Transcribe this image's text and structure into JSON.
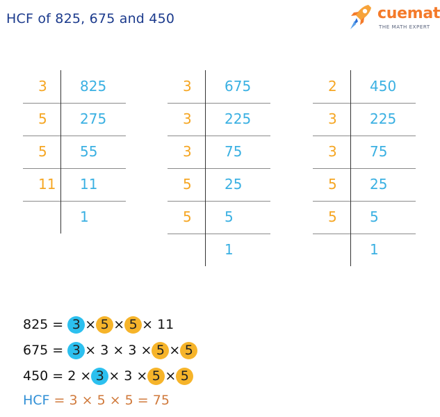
{
  "title": "HCF of 825, 675 and 450",
  "brand": {
    "name": "cuemath",
    "tagline": "THE MATH EXPERT",
    "colors": {
      "orange": "#f47a2a",
      "blue": "#2c6fd6"
    }
  },
  "colors": {
    "divisor": "#f5a623",
    "quotient": "#3ab0e2",
    "circle_blue": "#2cc0ef",
    "circle_orange": "#f6b42a",
    "hcf_label": "#2f8fd6",
    "hcf_result": "#d07a3c"
  },
  "tables": [
    {
      "rows": [
        {
          "divisor": "3",
          "value": "825"
        },
        {
          "divisor": "5",
          "value": "275"
        },
        {
          "divisor": "5",
          "value": "55"
        },
        {
          "divisor": "11",
          "value": "11"
        },
        {
          "divisor": "",
          "value": "1"
        }
      ]
    },
    {
      "rows": [
        {
          "divisor": "3",
          "value": "675"
        },
        {
          "divisor": "3",
          "value": "225"
        },
        {
          "divisor": "3",
          "value": "75"
        },
        {
          "divisor": "5",
          "value": "25"
        },
        {
          "divisor": "5",
          "value": "5"
        },
        {
          "divisor": "",
          "value": "1"
        }
      ]
    },
    {
      "rows": [
        {
          "divisor": "2",
          "value": "450"
        },
        {
          "divisor": "3",
          "value": "225"
        },
        {
          "divisor": "3",
          "value": "75"
        },
        {
          "divisor": "5",
          "value": "25"
        },
        {
          "divisor": "5",
          "value": "5"
        },
        {
          "divisor": "",
          "value": "1"
        }
      ]
    }
  ],
  "equations": [
    {
      "parts": [
        {
          "t": "825 = "
        },
        {
          "c": "3",
          "color": "blue"
        },
        {
          "t": "×"
        },
        {
          "c": "5",
          "color": "orange"
        },
        {
          "t": "×"
        },
        {
          "c": "5",
          "color": "orange"
        },
        {
          "t": "× 11"
        }
      ]
    },
    {
      "parts": [
        {
          "t": "675 = "
        },
        {
          "c": "3",
          "color": "blue"
        },
        {
          "t": "× 3 × 3 ×"
        },
        {
          "c": "5",
          "color": "orange"
        },
        {
          "t": "×"
        },
        {
          "c": "5",
          "color": "orange"
        }
      ]
    },
    {
      "parts": [
        {
          "t": "450 = 2 ×"
        },
        {
          "c": "3",
          "color": "blue"
        },
        {
          "t": "× 3 ×"
        },
        {
          "c": "5",
          "color": "orange"
        },
        {
          "t": "×"
        },
        {
          "c": "5",
          "color": "orange"
        }
      ]
    }
  ],
  "hcf": {
    "label": "HCF",
    "expression": "= 3 × 5 × 5 = 75"
  }
}
